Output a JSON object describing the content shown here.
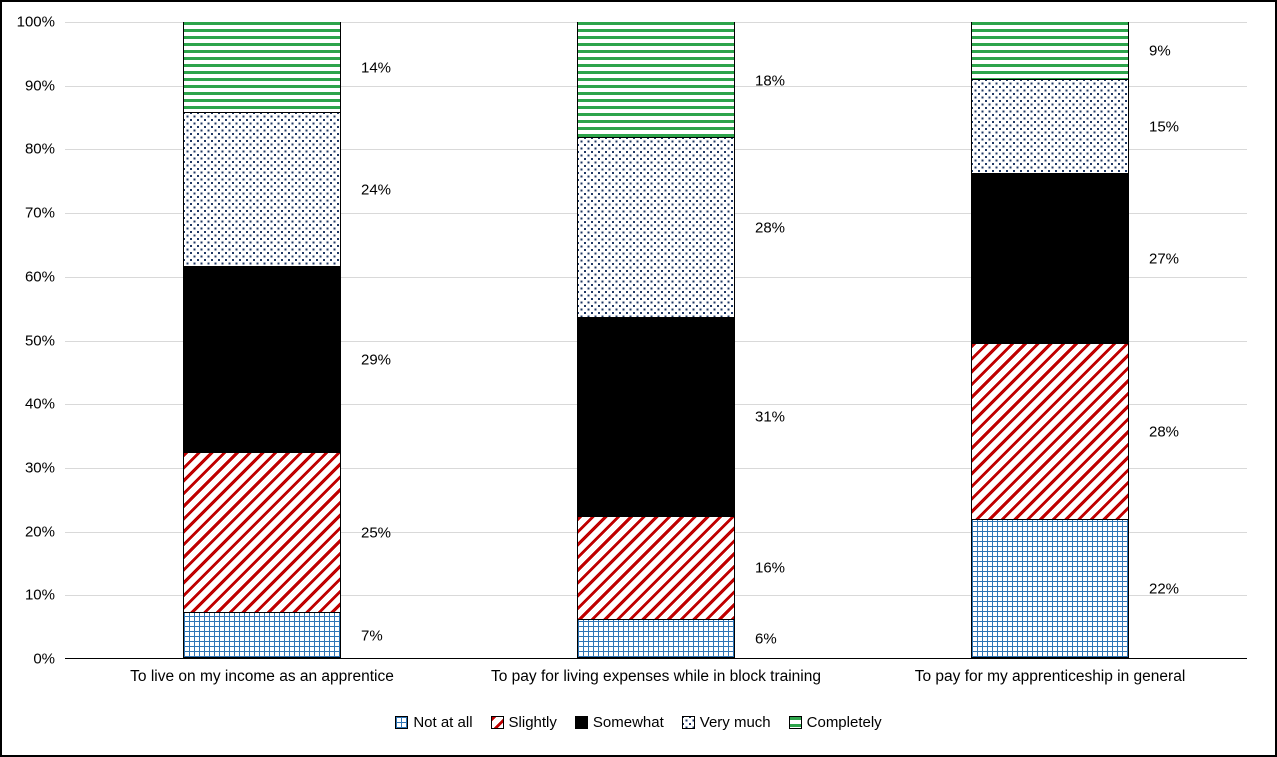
{
  "chart_data": {
    "type": "bar",
    "subtype": "stacked-100",
    "title": "",
    "xlabel": "",
    "ylabel": "",
    "ylim": [
      0,
      100
    ],
    "grid": true,
    "legend_position": "bottom",
    "grid_color": "#d9d9d9",
    "axis_color": "#000000",
    "y_ticks": [
      "0%",
      "10%",
      "20%",
      "30%",
      "40%",
      "50%",
      "60%",
      "70%",
      "80%",
      "90%",
      "100%"
    ],
    "categories": [
      "To live on my income as an apprentice",
      "To pay for living expenses while in block training",
      "To pay for my apprenticeship in general"
    ],
    "series": [
      {
        "name": "Not at all",
        "pattern": "grid",
        "color": "#2e75b6",
        "values": [
          7,
          6,
          22
        ]
      },
      {
        "name": "Slightly",
        "pattern": "diagonal-stripes",
        "color": "#c00000",
        "values": [
          25,
          16,
          28
        ]
      },
      {
        "name": "Somewhat",
        "pattern": "solid",
        "color": "#000000",
        "values": [
          29,
          31,
          27
        ]
      },
      {
        "name": "Very much",
        "pattern": "speckle",
        "color": "#1f3864",
        "values": [
          24,
          28,
          15
        ]
      },
      {
        "name": "Completely",
        "pattern": "horizontal-stripes",
        "color": "#2da44b",
        "values": [
          14,
          18,
          9
        ]
      }
    ],
    "data_label_format": "{value}%"
  }
}
